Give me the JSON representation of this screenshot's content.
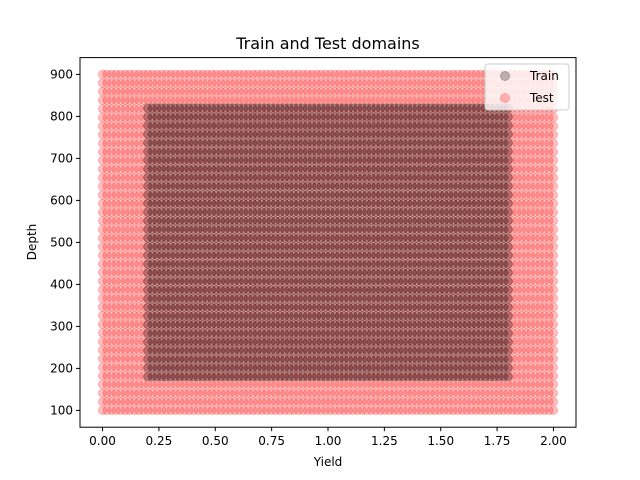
{
  "chart_data": {
    "type": "scatter",
    "title": "Train and Test domains",
    "xlabel": "Yield",
    "ylabel": "Depth",
    "xlim": [
      -0.1,
      2.1
    ],
    "ylim": [
      60,
      940
    ],
    "xticks": [
      "0.00",
      "0.25",
      "0.50",
      "0.75",
      "1.00",
      "1.25",
      "1.50",
      "1.75",
      "2.00"
    ],
    "xtick_values": [
      0,
      0.25,
      0.5,
      0.75,
      1.0,
      1.25,
      1.5,
      1.75,
      2.0
    ],
    "yticks": [
      "100",
      "200",
      "300",
      "400",
      "500",
      "600",
      "700",
      "800",
      "900"
    ],
    "ytick_values": [
      100,
      200,
      300,
      400,
      500,
      600,
      700,
      800,
      900
    ],
    "grid": false,
    "legend_position": "top-right",
    "series": [
      {
        "name": "Test",
        "color": "#ff0000",
        "alpha": 0.25,
        "marker": "circle",
        "x_range": [
          0.0,
          2.0
        ],
        "y_range": [
          100,
          900
        ],
        "n_x": 100,
        "n_y": 40
      },
      {
        "name": "Train",
        "color": "#000000",
        "alpha": 0.25,
        "marker": "circle",
        "x_range": [
          0.2,
          1.8
        ],
        "y_range": [
          180,
          820
        ],
        "n_x": 80,
        "n_y": 32
      }
    ]
  }
}
